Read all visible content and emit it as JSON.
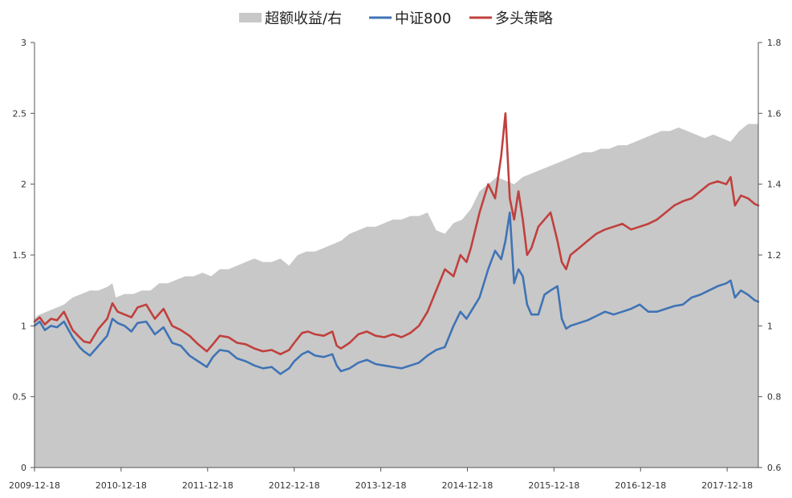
{
  "chart_data": {
    "type": "line",
    "title": "",
    "legend": {
      "position": "top",
      "entries": [
        {
          "label": "超额收益/右",
          "kind": "area",
          "color": "#c8c8c8"
        },
        {
          "label": "中证800",
          "kind": "line",
          "color": "#3f73b5"
        },
        {
          "label": "多头策略",
          "kind": "line",
          "color": "#c0403d"
        }
      ]
    },
    "x_axis": {
      "tick_labels": [
        "2009-12-18",
        "2010-12-18",
        "2011-12-18",
        "2012-12-18",
        "2013-12-18",
        "2014-12-18",
        "2015-12-18",
        "2016-12-18",
        "2017-12-18"
      ],
      "range": [
        2009.96,
        2018.32
      ]
    },
    "y_left": {
      "range": [
        0,
        3
      ],
      "tick_labels": [
        "0",
        "0.5",
        "1",
        "1.5",
        "2",
        "2.5",
        "3"
      ],
      "tick_values": [
        0,
        0.5,
        1,
        1.5,
        2,
        2.5,
        3
      ]
    },
    "y_right": {
      "range": [
        0.6,
        1.8
      ],
      "tick_labels": [
        "0.6",
        "0.8",
        "1",
        "1.2",
        "1.4",
        "1.6",
        "1.8"
      ],
      "tick_values": [
        0.6,
        0.8,
        1,
        1.2,
        1.4,
        1.6,
        1.8
      ]
    },
    "grid": false,
    "series": [
      {
        "name": "超额收益/右",
        "axis": "right",
        "kind": "area",
        "color": "#c8c8c8",
        "x": [
          2009.96,
          2010.0,
          2010.1,
          2010.2,
          2010.3,
          2010.4,
          2010.5,
          2010.6,
          2010.7,
          2010.8,
          2010.86,
          2010.9,
          2011.0,
          2011.1,
          2011.2,
          2011.3,
          2011.4,
          2011.5,
          2011.6,
          2011.7,
          2011.8,
          2011.9,
          2012.0,
          2012.1,
          2012.2,
          2012.3,
          2012.4,
          2012.5,
          2012.6,
          2012.7,
          2012.8,
          2012.9,
          2013.0,
          2013.1,
          2013.2,
          2013.3,
          2013.4,
          2013.5,
          2013.6,
          2013.7,
          2013.8,
          2013.9,
          2014.0,
          2014.1,
          2014.2,
          2014.3,
          2014.4,
          2014.5,
          2014.6,
          2014.7,
          2014.8,
          2014.9,
          2015.0,
          2015.1,
          2015.2,
          2015.3,
          2015.4,
          2015.5,
          2015.6,
          2015.7,
          2015.8,
          2015.9,
          2016.0,
          2016.1,
          2016.2,
          2016.3,
          2016.4,
          2016.5,
          2016.6,
          2016.7,
          2016.8,
          2016.9,
          2017.0,
          2017.1,
          2017.2,
          2017.3,
          2017.4,
          2017.5,
          2017.6,
          2017.7,
          2017.8,
          2017.9,
          2018.0,
          2018.1,
          2018.2,
          2018.32
        ],
        "values": [
          1.02,
          1.03,
          1.04,
          1.05,
          1.06,
          1.08,
          1.09,
          1.1,
          1.1,
          1.11,
          1.12,
          1.08,
          1.09,
          1.09,
          1.1,
          1.1,
          1.12,
          1.12,
          1.13,
          1.14,
          1.14,
          1.15,
          1.14,
          1.16,
          1.16,
          1.17,
          1.18,
          1.19,
          1.18,
          1.18,
          1.19,
          1.17,
          1.2,
          1.21,
          1.21,
          1.22,
          1.23,
          1.24,
          1.26,
          1.27,
          1.28,
          1.28,
          1.29,
          1.3,
          1.3,
          1.31,
          1.31,
          1.32,
          1.27,
          1.26,
          1.29,
          1.3,
          1.33,
          1.38,
          1.4,
          1.42,
          1.41,
          1.4,
          1.42,
          1.43,
          1.44,
          1.45,
          1.46,
          1.47,
          1.48,
          1.49,
          1.49,
          1.5,
          1.5,
          1.51,
          1.51,
          1.52,
          1.53,
          1.54,
          1.55,
          1.55,
          1.56,
          1.55,
          1.54,
          1.53,
          1.54,
          1.53,
          1.52,
          1.55,
          1.57,
          1.57
        ]
      },
      {
        "name": "中证800",
        "axis": "left",
        "kind": "line",
        "color": "#3f73b5",
        "x": [
          2009.96,
          2010.02,
          2010.08,
          2010.15,
          2010.22,
          2010.3,
          2010.4,
          2010.48,
          2010.53,
          2010.6,
          2010.7,
          2010.8,
          2010.86,
          2010.92,
          2011.0,
          2011.08,
          2011.15,
          2011.25,
          2011.35,
          2011.45,
          2011.55,
          2011.65,
          2011.75,
          2011.85,
          2011.95,
          2012.02,
          2012.1,
          2012.2,
          2012.3,
          2012.4,
          2012.5,
          2012.6,
          2012.7,
          2012.8,
          2012.9,
          2012.96,
          2013.05,
          2013.12,
          2013.2,
          2013.3,
          2013.4,
          2013.45,
          2013.5,
          2013.6,
          2013.7,
          2013.8,
          2013.9,
          2014.0,
          2014.1,
          2014.2,
          2014.3,
          2014.4,
          2014.5,
          2014.6,
          2014.7,
          2014.8,
          2014.88,
          2014.95,
          2015.0,
          2015.1,
          2015.2,
          2015.28,
          2015.35,
          2015.4,
          2015.45,
          2015.5,
          2015.55,
          2015.6,
          2015.65,
          2015.7,
          2015.78,
          2015.85,
          2015.92,
          2016.0,
          2016.05,
          2016.1,
          2016.15,
          2016.25,
          2016.35,
          2016.45,
          2016.55,
          2016.65,
          2016.75,
          2016.85,
          2016.95,
          2017.05,
          2017.15,
          2017.25,
          2017.35,
          2017.45,
          2017.55,
          2017.65,
          2017.75,
          2017.85,
          2017.95,
          2018.0,
          2018.05,
          2018.12,
          2018.2,
          2018.28,
          2018.32
        ],
        "values": [
          1.0,
          1.03,
          0.97,
          1.0,
          0.99,
          1.03,
          0.92,
          0.85,
          0.82,
          0.79,
          0.86,
          0.93,
          1.05,
          1.02,
          1.0,
          0.96,
          1.02,
          1.03,
          0.94,
          0.99,
          0.88,
          0.86,
          0.79,
          0.75,
          0.71,
          0.78,
          0.83,
          0.82,
          0.77,
          0.75,
          0.72,
          0.7,
          0.71,
          0.66,
          0.7,
          0.75,
          0.8,
          0.82,
          0.79,
          0.78,
          0.8,
          0.72,
          0.68,
          0.7,
          0.74,
          0.76,
          0.73,
          0.72,
          0.71,
          0.7,
          0.72,
          0.74,
          0.79,
          0.83,
          0.85,
          1.0,
          1.1,
          1.05,
          1.1,
          1.2,
          1.4,
          1.53,
          1.47,
          1.6,
          1.8,
          1.3,
          1.4,
          1.35,
          1.15,
          1.08,
          1.08,
          1.22,
          1.25,
          1.28,
          1.05,
          0.98,
          1.0,
          1.02,
          1.04,
          1.07,
          1.1,
          1.08,
          1.1,
          1.12,
          1.15,
          1.1,
          1.1,
          1.12,
          1.14,
          1.15,
          1.2,
          1.22,
          1.25,
          1.28,
          1.3,
          1.32,
          1.2,
          1.25,
          1.22,
          1.18,
          1.17
        ]
      },
      {
        "name": "多头策略",
        "axis": "left",
        "kind": "line",
        "color": "#c0403d",
        "x": [
          2009.96,
          2010.02,
          2010.08,
          2010.15,
          2010.22,
          2010.3,
          2010.4,
          2010.48,
          2010.53,
          2010.6,
          2010.7,
          2010.8,
          2010.86,
          2010.92,
          2011.0,
          2011.08,
          2011.15,
          2011.25,
          2011.35,
          2011.45,
          2011.55,
          2011.65,
          2011.75,
          2011.85,
          2011.95,
          2012.02,
          2012.1,
          2012.2,
          2012.3,
          2012.4,
          2012.5,
          2012.6,
          2012.7,
          2012.8,
          2012.9,
          2012.96,
          2013.05,
          2013.12,
          2013.2,
          2013.3,
          2013.4,
          2013.45,
          2013.5,
          2013.6,
          2013.7,
          2013.8,
          2013.9,
          2014.0,
          2014.1,
          2014.2,
          2014.3,
          2014.4,
          2014.5,
          2014.6,
          2014.7,
          2014.8,
          2014.88,
          2014.95,
          2015.0,
          2015.1,
          2015.2,
          2015.28,
          2015.35,
          2015.4,
          2015.45,
          2015.5,
          2015.55,
          2015.6,
          2015.65,
          2015.7,
          2015.78,
          2015.85,
          2015.92,
          2016.0,
          2016.05,
          2016.1,
          2016.15,
          2016.25,
          2016.35,
          2016.45,
          2016.55,
          2016.65,
          2016.75,
          2016.85,
          2016.95,
          2017.05,
          2017.15,
          2017.25,
          2017.35,
          2017.45,
          2017.55,
          2017.65,
          2017.75,
          2017.85,
          2017.95,
          2018.0,
          2018.05,
          2018.12,
          2018.2,
          2018.28,
          2018.32
        ],
        "values": [
          1.03,
          1.06,
          1.01,
          1.05,
          1.04,
          1.1,
          0.97,
          0.92,
          0.89,
          0.88,
          0.98,
          1.05,
          1.16,
          1.1,
          1.08,
          1.06,
          1.13,
          1.15,
          1.05,
          1.12,
          1.0,
          0.97,
          0.93,
          0.87,
          0.82,
          0.87,
          0.93,
          0.92,
          0.88,
          0.87,
          0.84,
          0.82,
          0.83,
          0.8,
          0.83,
          0.88,
          0.95,
          0.96,
          0.94,
          0.93,
          0.96,
          0.86,
          0.84,
          0.88,
          0.94,
          0.96,
          0.93,
          0.92,
          0.94,
          0.92,
          0.95,
          1.0,
          1.1,
          1.25,
          1.4,
          1.35,
          1.5,
          1.45,
          1.55,
          1.8,
          2.0,
          1.9,
          2.2,
          2.5,
          1.9,
          1.75,
          1.95,
          1.75,
          1.5,
          1.55,
          1.7,
          1.75,
          1.8,
          1.6,
          1.45,
          1.4,
          1.5,
          1.55,
          1.6,
          1.65,
          1.68,
          1.7,
          1.72,
          1.68,
          1.7,
          1.72,
          1.75,
          1.8,
          1.85,
          1.88,
          1.9,
          1.95,
          2.0,
          2.02,
          2.0,
          2.05,
          1.85,
          1.92,
          1.9,
          1.86,
          1.85
        ]
      }
    ]
  }
}
